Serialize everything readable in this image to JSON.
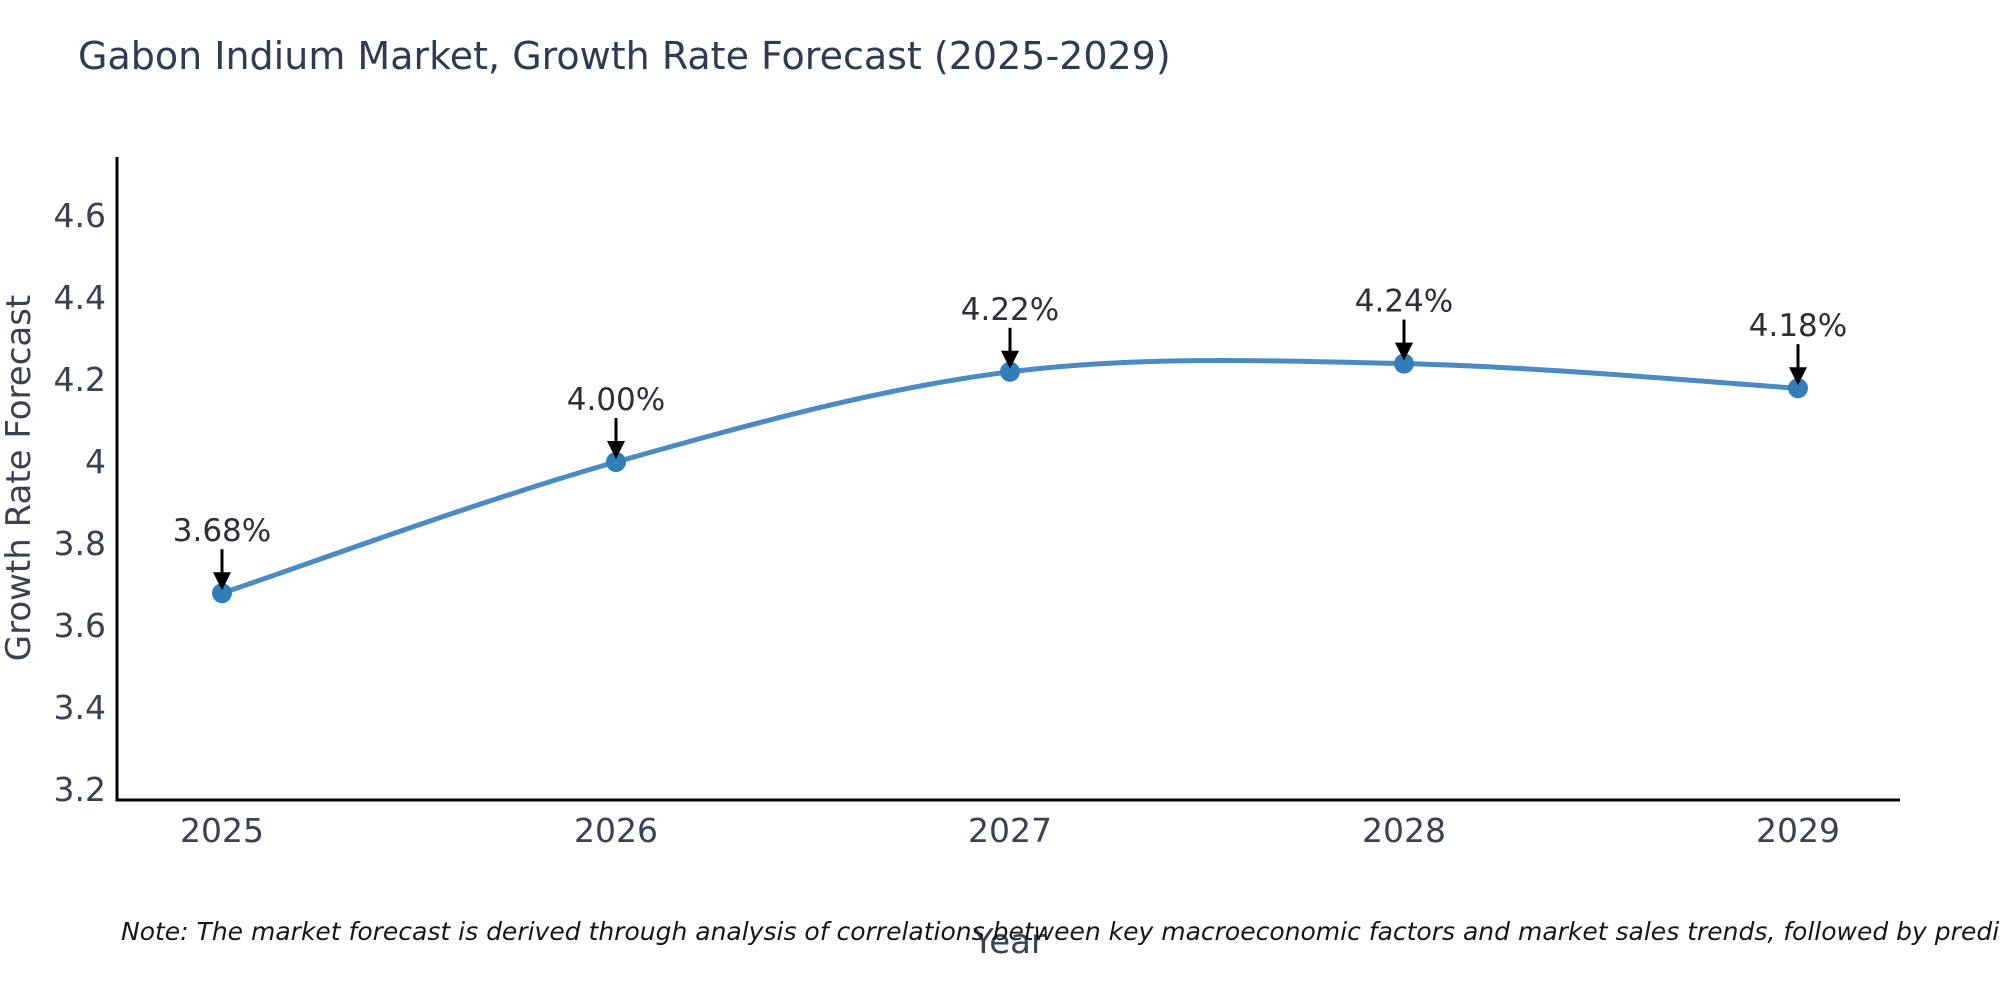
{
  "page": {
    "background_color": "#ffffff"
  },
  "chart_data": {
    "type": "line",
    "title": "Gabon Indium Market, Growth Rate Forecast (2025-2029)",
    "xlabel": "Year",
    "ylabel": "Growth Rate Forecast",
    "x": [
      2025,
      2026,
      2027,
      2028,
      2029
    ],
    "xtick_labels": [
      "2025",
      "2026",
      "2027",
      "2028",
      "2029"
    ],
    "y": [
      3.68,
      4.0,
      4.22,
      4.24,
      4.18
    ],
    "point_labels": [
      "3.68%",
      "4.00%",
      "4.22%",
      "4.24%",
      "4.18%"
    ],
    "ytick_values": [
      3.2,
      3.4,
      3.6,
      3.8,
      4,
      4.2,
      4.4,
      4.6
    ],
    "ytick_labels": [
      "3.2",
      "3.4",
      "3.6",
      "3.8",
      "4",
      "4.2",
      "4.4",
      "4.6"
    ],
    "ylim": [
      3.175,
      4.76
    ],
    "grid": false,
    "legend_position": "none",
    "line_color": "#4a8bc4",
    "marker_color": "#317eb8",
    "annotation_arrow_color": "#000000",
    "annotation_text_color": "#2b2f38",
    "axis_color": "#000000",
    "tick_text_color": "#3a4150"
  },
  "note": {
    "text": "Note: The market forecast is derived through analysis of correlations between key macroeconomic factors and market sales trends, followed by predictive modeling to project future sales"
  }
}
